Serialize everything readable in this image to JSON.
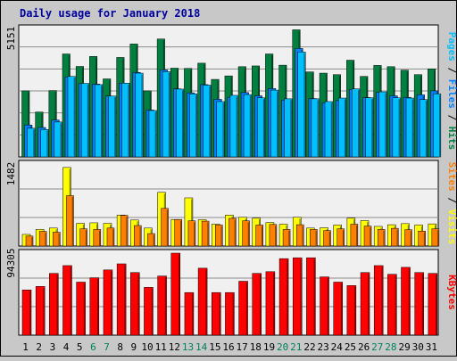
{
  "title": "Daily usage for January 2018",
  "colors": {
    "background": "#c8c8c8",
    "plot_background": "#f0f0f0",
    "grid": "#8c8c8c",
    "title": "#0000a0",
    "hits": "#008040",
    "files": "#0080ff",
    "pages": "#00c0ff",
    "visits": "#ff8000",
    "sites": "#ffff00",
    "kbytes": "#ff0000",
    "x_weekday": "#000000",
    "x_weekend": "#00805c"
  },
  "chart_data": [
    {
      "type": "bar",
      "panel": "hits-files-pages",
      "max_label": "5151",
      "ylim": [
        0,
        5151
      ],
      "legend_parts": [
        "Pages",
        "/",
        "Files",
        "/",
        "Hits"
      ],
      "categories": [
        "1",
        "2",
        "3",
        "4",
        "5",
        "6",
        "7",
        "8",
        "9",
        "10",
        "11",
        "12",
        "13",
        "14",
        "15",
        "16",
        "17",
        "18",
        "19",
        "20",
        "21",
        "22",
        "23",
        "24",
        "25",
        "26",
        "27",
        "28",
        "29",
        "30",
        "31"
      ],
      "series": [
        {
          "name": "Hits",
          "values": [
            2650,
            1800,
            2660,
            4130,
            3630,
            4030,
            3130,
            3990,
            4530,
            2650,
            4730,
            3560,
            3550,
            3760,
            3110,
            3250,
            3620,
            3650,
            4130,
            3680,
            5100,
            3410,
            3360,
            3300,
            3880,
            3230,
            3670,
            3620,
            3480,
            3300,
            3530
          ]
        },
        {
          "name": "Files",
          "values": [
            1280,
            1180,
            1480,
            3210,
            2940,
            2920,
            2440,
            2960,
            3390,
            1880,
            3490,
            2730,
            2570,
            2900,
            2310,
            2390,
            2580,
            2450,
            2740,
            2280,
            4350,
            2340,
            2170,
            2260,
            2700,
            2380,
            2590,
            2450,
            2390,
            2490,
            2650
          ]
        },
        {
          "name": "Pages",
          "values": [
            1150,
            1100,
            1400,
            3230,
            2950,
            2900,
            2440,
            2960,
            3360,
            1860,
            3420,
            2720,
            2530,
            2880,
            2220,
            2470,
            2500,
            2370,
            2680,
            2330,
            4210,
            2330,
            2220,
            2360,
            2730,
            2370,
            2610,
            2370,
            2360,
            2300,
            2530
          ]
        }
      ]
    },
    {
      "type": "bar",
      "panel": "visits-sites",
      "max_label": "1482",
      "ylim": [
        0,
        1482
      ],
      "legend_parts": [
        "Sites",
        "/",
        "Visits"
      ],
      "categories": [
        "1",
        "2",
        "3",
        "4",
        "5",
        "6",
        "7",
        "8",
        "9",
        "10",
        "11",
        "12",
        "13",
        "14",
        "15",
        "16",
        "17",
        "18",
        "19",
        "20",
        "21",
        "22",
        "23",
        "24",
        "25",
        "26",
        "27",
        "28",
        "29",
        "30",
        "31"
      ],
      "series": [
        {
          "name": "Visits",
          "values": [
            180,
            265,
            250,
            910,
            310,
            300,
            325,
            555,
            370,
            225,
            680,
            480,
            455,
            450,
            380,
            500,
            455,
            380,
            390,
            300,
            385,
            300,
            280,
            310,
            395,
            360,
            300,
            320,
            295,
            270,
            310
          ]
        },
        {
          "name": "Sites",
          "values": [
            210,
            300,
            325,
            1420,
            410,
            420,
            410,
            560,
            470,
            325,
            970,
            480,
            870,
            475,
            395,
            560,
            520,
            505,
            425,
            395,
            520,
            325,
            330,
            380,
            505,
            460,
            355,
            385,
            405,
            380,
            400
          ]
        }
      ]
    },
    {
      "type": "bar",
      "panel": "kbytes",
      "max_label": "94305",
      "ylim": [
        0,
        94305
      ],
      "legend_parts": [
        "KBytes"
      ],
      "categories": [
        "1",
        "2",
        "3",
        "4",
        "5",
        "6",
        "7",
        "8",
        "9",
        "10",
        "11",
        "12",
        "13",
        "14",
        "15",
        "16",
        "17",
        "18",
        "19",
        "20",
        "21",
        "22",
        "23",
        "24",
        "25",
        "26",
        "27",
        "28",
        "29",
        "30",
        "31"
      ],
      "series": [
        {
          "name": "KBytes",
          "values": [
            52000,
            56000,
            71000,
            80000,
            61000,
            66000,
            75000,
            82000,
            72000,
            55000,
            68000,
            94300,
            49000,
            77000,
            49000,
            49000,
            62000,
            71000,
            73000,
            88000,
            89000,
            89000,
            67000,
            61000,
            57000,
            72000,
            80000,
            70000,
            78000,
            72000,
            71000
          ]
        }
      ]
    }
  ]
}
